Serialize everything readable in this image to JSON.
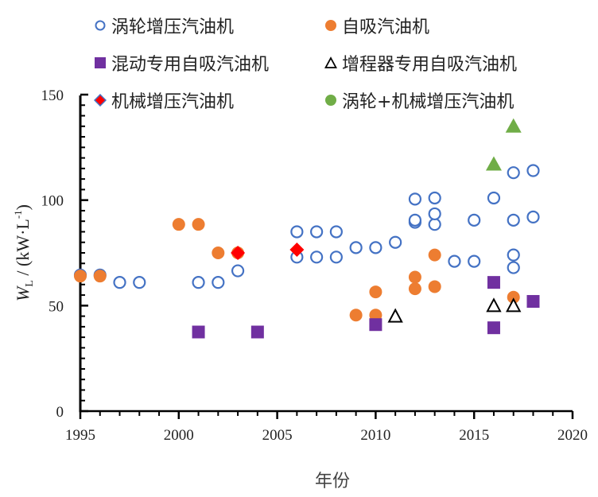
{
  "chart_data": {
    "type": "scatter",
    "title": "",
    "xlabel": "年份",
    "ylabel": {
      "symbol": "W",
      "subscript": "L",
      "unit_prefix": " / (kW·L",
      "unit_exp": "-1",
      "unit_suffix": ")"
    },
    "xlim": [
      1995,
      2020
    ],
    "ylim": [
      0,
      150
    ],
    "xticks": [
      1995,
      2000,
      2005,
      2010,
      2015,
      2020
    ],
    "yticks": [
      0,
      50,
      100,
      150
    ],
    "legend_position": "top",
    "series": [
      {
        "name": "涡轮增压汽油机",
        "marker": "circle-open",
        "color": "#4472c4",
        "points": [
          [
            1995,
            64.5
          ],
          [
            1996,
            64.5
          ],
          [
            1997,
            61
          ],
          [
            1998,
            61
          ],
          [
            2001,
            61
          ],
          [
            2002,
            61
          ],
          [
            2003,
            66.5
          ],
          [
            2006,
            73
          ],
          [
            2006,
            85
          ],
          [
            2007,
            73
          ],
          [
            2007,
            85
          ],
          [
            2008,
            73
          ],
          [
            2008,
            85
          ],
          [
            2009,
            77.5
          ],
          [
            2010,
            77.5
          ],
          [
            2011,
            80
          ],
          [
            2012,
            89.5
          ],
          [
            2012,
            90.5
          ],
          [
            2012,
            100.5
          ],
          [
            2013,
            88.5
          ],
          [
            2013,
            93.5
          ],
          [
            2013,
            101
          ],
          [
            2014,
            71
          ],
          [
            2015,
            71
          ],
          [
            2015,
            90.5
          ],
          [
            2016,
            101
          ],
          [
            2017,
            68
          ],
          [
            2017,
            74
          ],
          [
            2017,
            90.5
          ],
          [
            2017,
            113
          ],
          [
            2018,
            92
          ],
          [
            2018,
            114
          ]
        ]
      },
      {
        "name": "自吸汽油机",
        "marker": "circle-filled",
        "color": "#ed7d31",
        "points": [
          [
            1995,
            64
          ],
          [
            1996,
            64
          ],
          [
            2000,
            88.5
          ],
          [
            2001,
            88.5
          ],
          [
            2002,
            75
          ],
          [
            2003,
            75
          ],
          [
            2009,
            45.5
          ],
          [
            2010,
            45.5
          ],
          [
            2010,
            56.5
          ],
          [
            2012,
            58
          ],
          [
            2012,
            63.5
          ],
          [
            2013,
            59
          ],
          [
            2013,
            74
          ],
          [
            2017,
            54
          ]
        ]
      },
      {
        "name": "混动专用自吸汽油机",
        "marker": "square",
        "color": "#7030a0",
        "points": [
          [
            2001,
            37.5
          ],
          [
            2004,
            37.5
          ],
          [
            2010,
            41
          ],
          [
            2016,
            39.5
          ],
          [
            2016,
            61
          ],
          [
            2018,
            52
          ]
        ]
      },
      {
        "name": "增程器专用自吸汽油机",
        "marker": "triangle-open",
        "color": "#000000",
        "points": [
          [
            2011,
            45
          ],
          [
            2016,
            50
          ],
          [
            2017,
            50
          ]
        ]
      },
      {
        "name": "机械增压汽油机",
        "marker": "diamond",
        "color": "#ff0000",
        "points": [
          [
            2003,
            75
          ],
          [
            2006,
            76.5
          ]
        ]
      },
      {
        "name": "涡轮+机械增压汽油机",
        "marker": "triangle-filled",
        "color": "#70ad47",
        "points": [
          [
            2016,
            117
          ],
          [
            2017,
            135
          ]
        ]
      }
    ]
  }
}
